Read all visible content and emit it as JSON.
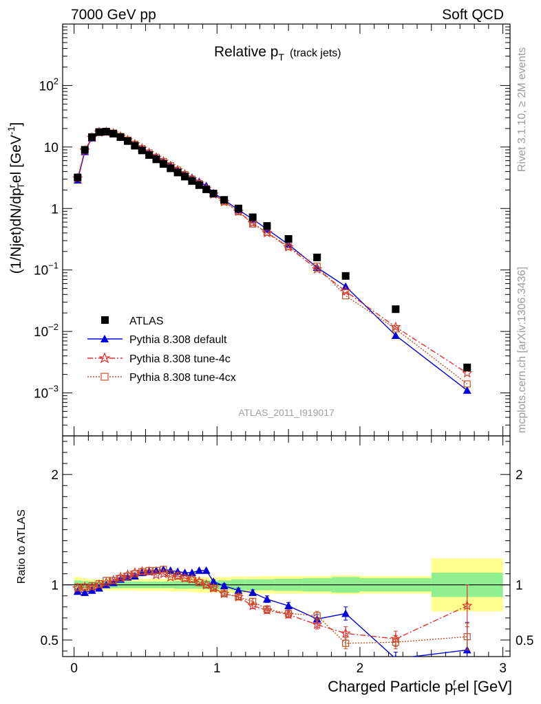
{
  "header": {
    "left": "7000 GeV pp",
    "right": "Soft QCD"
  },
  "plot_title": {
    "main": "Relative p",
    "sub": "T",
    "extra": "(track jets)"
  },
  "analysis_tag": "ATLAS_2011_I919017",
  "side_labels": {
    "rivet": "Rivet 3.1.10, ≥ 2M events",
    "mcplots": "mcplots.cern.ch [arXiv:1306.3436]"
  },
  "axes": {
    "main_ylabel_a": "(1/Njet)dN/dp",
    "main_ylabel_sup": "r",
    "main_ylabel_sub": "T",
    "main_ylabel_b": "el [GeV",
    "main_ylabel_exp": "-1",
    "main_ylabel_c": "]",
    "ratio_ylabel": "Ratio to ATLAS",
    "xlabel_a": "Charged Particle p",
    "xlabel_sup": "r",
    "xlabel_sub": "T",
    "xlabel_b": "el [GeV]"
  },
  "colors": {
    "atlas": "#000000",
    "default": "#0000dd",
    "tune4c": "#e03030",
    "tune4cx": "#c05020",
    "band_inner": "#90f090",
    "band_outer": "#ffff90"
  },
  "chart_data": [
    {
      "type": "scatter",
      "title": "Relative pT (track jets)",
      "ylog": true,
      "xlim": [
        -0.08,
        3.05
      ],
      "ylim": [
        0.0002,
        1000
      ],
      "x_ticks": [
        0,
        1,
        2,
        3
      ],
      "y_ticks": [
        "10^-3",
        "10^-2",
        "10^-1",
        "1",
        "10",
        "10^2"
      ],
      "legend_position": "bottom-left",
      "x": [
        0.025,
        0.075,
        0.125,
        0.175,
        0.225,
        0.275,
        0.325,
        0.375,
        0.425,
        0.475,
        0.525,
        0.575,
        0.625,
        0.675,
        0.725,
        0.775,
        0.825,
        0.875,
        0.925,
        0.975,
        1.05,
        1.15,
        1.25,
        1.35,
        1.5,
        1.7,
        1.9,
        2.25,
        2.75
      ],
      "series": [
        {
          "name": "ATLAS",
          "marker": "filled-square",
          "values": [
            3.2,
            9.0,
            14.5,
            17.5,
            17.8,
            16.5,
            14.5,
            12.5,
            10.5,
            8.8,
            7.4,
            6.3,
            5.3,
            4.5,
            3.85,
            3.3,
            2.8,
            2.4,
            2.05,
            1.75,
            1.38,
            1.0,
            0.72,
            0.52,
            0.32,
            0.16,
            0.08,
            0.023,
            0.0026
          ]
        },
        {
          "name": "Pythia 8.308 default",
          "marker": "triangle",
          "line": "solid",
          "values": [
            2.9,
            8.4,
            14.0,
            17.3,
            17.5,
            16.8,
            14.9,
            13.1,
            11.3,
            9.6,
            8.2,
            7.0,
            6.0,
            5.1,
            4.3,
            3.7,
            3.2,
            2.75,
            2.35,
            1.8,
            1.37,
            0.95,
            0.67,
            0.46,
            0.26,
            0.11,
            0.054,
            0.0086,
            0.0011
          ]
        },
        {
          "name": "Pythia 8.308 tune-4c",
          "marker": "star",
          "line": "dash-dot",
          "values": [
            3.1,
            8.8,
            14.2,
            17.4,
            17.6,
            16.7,
            14.8,
            12.9,
            11.1,
            9.4,
            8.0,
            6.7,
            5.8,
            4.9,
            4.2,
            3.55,
            3.0,
            2.55,
            2.1,
            1.7,
            1.28,
            0.89,
            0.58,
            0.4,
            0.235,
            0.103,
            0.045,
            0.0118,
            0.0021
          ]
        },
        {
          "name": "Pythia 8.308 tune-4cx",
          "marker": "open-square",
          "line": "dotted",
          "values": [
            3.15,
            8.9,
            14.4,
            17.7,
            17.9,
            16.8,
            14.8,
            12.9,
            11.1,
            9.4,
            8.0,
            6.8,
            5.8,
            4.95,
            4.2,
            3.55,
            3.0,
            2.55,
            2.08,
            1.71,
            1.29,
            0.89,
            0.56,
            0.41,
            0.24,
            0.115,
            0.038,
            0.011,
            0.0014
          ]
        }
      ]
    },
    {
      "type": "scatter",
      "ylabel": "Ratio to ATLAS",
      "xlabel": "Charged Particle pTrel [GeV]",
      "xlim": [
        -0.08,
        3.05
      ],
      "ylim": [
        0.35,
        2.35
      ],
      "y_ticks": [
        0.5,
        1,
        2
      ],
      "x": [
        0.025,
        0.075,
        0.125,
        0.175,
        0.225,
        0.275,
        0.325,
        0.375,
        0.425,
        0.475,
        0.525,
        0.575,
        0.625,
        0.675,
        0.725,
        0.775,
        0.825,
        0.875,
        0.925,
        0.975,
        1.05,
        1.15,
        1.25,
        1.35,
        1.5,
        1.7,
        1.9,
        2.25,
        2.75
      ],
      "bands": {
        "edges": [
          0.0,
          0.05,
          0.1,
          0.15,
          0.2,
          0.25,
          0.3,
          0.35,
          0.4,
          0.45,
          0.5,
          0.55,
          0.6,
          0.65,
          0.7,
          0.75,
          0.8,
          0.85,
          0.9,
          0.95,
          1.0,
          1.1,
          1.2,
          1.3,
          1.4,
          1.6,
          1.8,
          2.0,
          2.5,
          3.0
        ],
        "inner": [
          0.04,
          0.035,
          0.03,
          0.03,
          0.03,
          0.03,
          0.03,
          0.03,
          0.03,
          0.03,
          0.03,
          0.03,
          0.03,
          0.03,
          0.035,
          0.035,
          0.035,
          0.035,
          0.04,
          0.04,
          0.04,
          0.05,
          0.05,
          0.05,
          0.055,
          0.06,
          0.07,
          0.06,
          0.11
        ],
        "outer": [
          0.07,
          0.06,
          0.05,
          0.05,
          0.05,
          0.05,
          0.05,
          0.05,
          0.05,
          0.055,
          0.055,
          0.055,
          0.055,
          0.06,
          0.06,
          0.06,
          0.065,
          0.07,
          0.07,
          0.07,
          0.07,
          0.075,
          0.075,
          0.08,
          0.08,
          0.08,
          0.085,
          0.08,
          0.24
        ]
      },
      "series": [
        {
          "name": "Pythia 8.308 default",
          "values": [
            0.94,
            0.93,
            0.95,
            0.97,
            1.0,
            1.02,
            1.05,
            1.07,
            1.08,
            1.11,
            1.12,
            1.13,
            1.14,
            1.13,
            1.12,
            1.11,
            1.11,
            1.13,
            1.13,
            1.03,
            0.99,
            0.95,
            0.93,
            0.87,
            0.81,
            0.69,
            0.74,
            0.33,
            0.41
          ],
          "errors": [
            0.01,
            0.01,
            0.01,
            0.01,
            0.01,
            0.01,
            0.01,
            0.01,
            0.01,
            0.01,
            0.01,
            0.01,
            0.01,
            0.01,
            0.01,
            0.01,
            0.01,
            0.01,
            0.01,
            0.015,
            0.02,
            0.02,
            0.025,
            0.03,
            0.03,
            0.04,
            0.06,
            0.06,
            0.25
          ]
        },
        {
          "name": "Pythia 8.308 tune-4c",
          "values": [
            0.97,
            0.98,
            0.98,
            1.0,
            1.02,
            1.04,
            1.07,
            1.09,
            1.11,
            1.12,
            1.12,
            1.09,
            1.1,
            1.07,
            1.08,
            1.06,
            1.05,
            1.03,
            1.0,
            0.97,
            0.92,
            0.89,
            0.81,
            0.77,
            0.73,
            0.64,
            0.56,
            0.51,
            0.81
          ],
          "errors": [
            0.01,
            0.01,
            0.01,
            0.01,
            0.01,
            0.01,
            0.01,
            0.01,
            0.01,
            0.01,
            0.01,
            0.01,
            0.01,
            0.01,
            0.01,
            0.01,
            0.01,
            0.01,
            0.01,
            0.015,
            0.02,
            0.02,
            0.025,
            0.03,
            0.03,
            0.04,
            0.06,
            0.07,
            0.19
          ]
        },
        {
          "name": "Pythia 8.308 tune-4cx",
          "values": [
            0.98,
            0.98,
            0.99,
            1.01,
            1.04,
            1.04,
            1.06,
            1.08,
            1.1,
            1.12,
            1.13,
            1.13,
            1.14,
            1.1,
            1.08,
            1.06,
            1.05,
            1.02,
            1.0,
            0.97,
            0.92,
            0.89,
            0.85,
            0.78,
            0.74,
            0.72,
            0.47,
            0.48,
            0.53
          ],
          "errors": [
            0.01,
            0.01,
            0.01,
            0.01,
            0.01,
            0.01,
            0.01,
            0.01,
            0.01,
            0.01,
            0.01,
            0.01,
            0.01,
            0.01,
            0.01,
            0.01,
            0.01,
            0.01,
            0.01,
            0.015,
            0.02,
            0.02,
            0.025,
            0.03,
            0.03,
            0.04,
            0.05,
            0.06,
            0.12
          ]
        }
      ]
    }
  ]
}
